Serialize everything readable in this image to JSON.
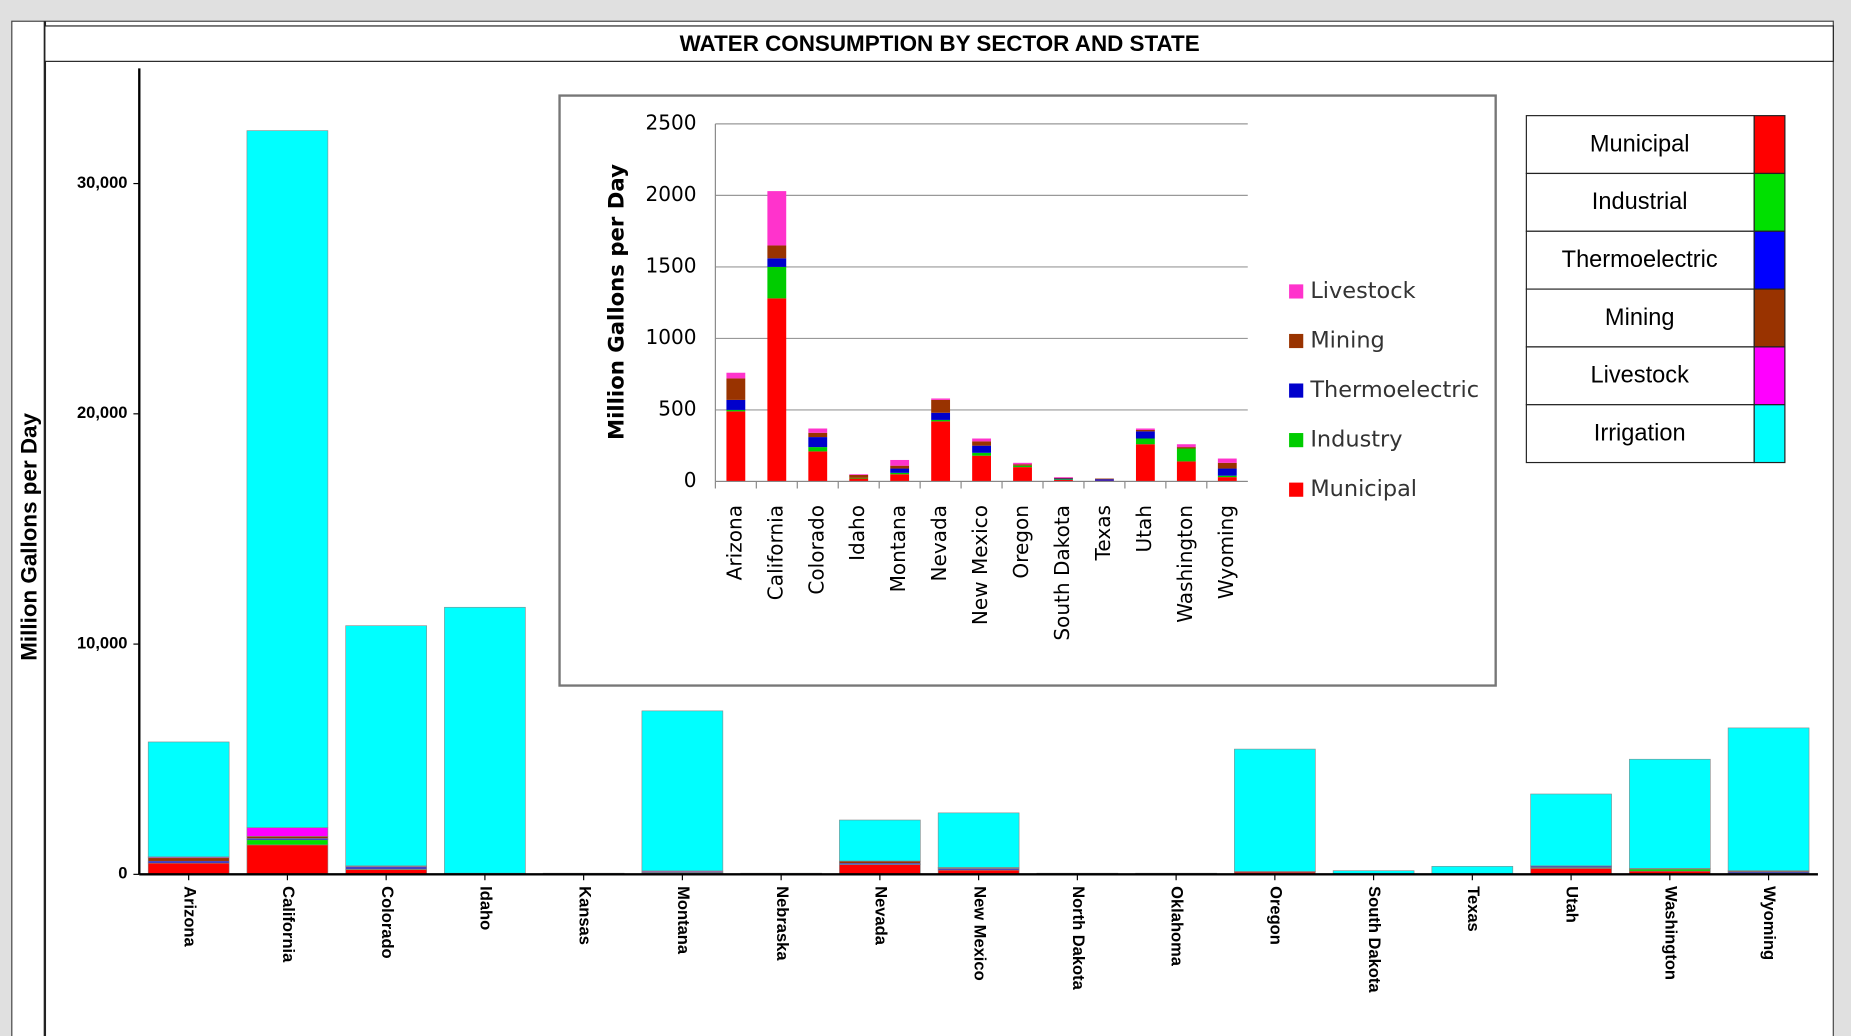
{
  "chart_data": [
    {
      "type": "bar",
      "stacked": true,
      "title": "WATER CONSUMPTION BY SECTOR AND STATE",
      "y_label": "Million Gallons per Day",
      "categories": [
        "Arizona",
        "California",
        "Colorado",
        "Idaho",
        "Kansas",
        "Montana",
        "Nebraska",
        "Nevada",
        "New Mexico",
        "North Dakota",
        "Oklahoma",
        "Oregon",
        "South Dakota",
        "Texas",
        "Utah",
        "Washington",
        "Wyoming"
      ],
      "series": [
        {
          "name": "Municipal",
          "color": "#ff0000",
          "values": [
            490,
            1280,
            210,
            20,
            20,
            50,
            20,
            420,
            180,
            20,
            20,
            100,
            10,
            5,
            260,
            140,
            30
          ]
        },
        {
          "name": "Industrial",
          "color": "#00e000",
          "values": [
            10,
            220,
            30,
            5,
            0,
            10,
            0,
            10,
            20,
            0,
            0,
            10,
            5,
            0,
            40,
            90,
            10
          ]
        },
        {
          "name": "Thermoelectric",
          "color": "#0000ff",
          "values": [
            70,
            60,
            70,
            0,
            0,
            30,
            0,
            50,
            50,
            0,
            0,
            0,
            5,
            10,
            50,
            0,
            50
          ]
        },
        {
          "name": "Mining",
          "color": "#993300",
          "values": [
            150,
            90,
            30,
            20,
            0,
            20,
            0,
            90,
            30,
            0,
            0,
            10,
            5,
            5,
            10,
            10,
            40
          ]
        },
        {
          "name": "Livestock",
          "color": "#ff00ff",
          "values": [
            40,
            380,
            30,
            5,
            0,
            40,
            0,
            10,
            20,
            0,
            0,
            10,
            5,
            0,
            10,
            20,
            30
          ]
        },
        {
          "name": "Irrigation",
          "color": "#00ffff",
          "values": [
            4990,
            30270,
            10430,
            11550,
            30,
            6950,
            30,
            1780,
            2370,
            30,
            30,
            5310,
            130,
            330,
            3120,
            4740,
            6200
          ]
        }
      ],
      "ylim": [
        0,
        35000
      ],
      "yticks": [
        0,
        {
          "value": 10000,
          "label": "10,000"
        },
        {
          "value": 20000,
          "label": "20,000"
        },
        {
          "value": 30000,
          "label": "30,000"
        }
      ],
      "grid": false,
      "legend": "upper right"
    },
    {
      "type": "bar",
      "stacked": true,
      "y_label": "Million Gallons per Day",
      "categories": [
        "Arizona",
        "California",
        "Colorado",
        "Idaho",
        "Montana",
        "Nevada",
        "New Mexico",
        "Oregon",
        "South Dakota",
        "Texas",
        "Utah",
        "Washington",
        "Wyoming"
      ],
      "series": [
        {
          "name": "Municipal",
          "color": "#ff0000",
          "values": [
            490,
            1280,
            210,
            20,
            50,
            420,
            180,
            100,
            10,
            5,
            260,
            140,
            30
          ]
        },
        {
          "name": "Industry",
          "color": "#00cc00",
          "values": [
            10,
            220,
            30,
            5,
            10,
            10,
            20,
            10,
            5,
            0,
            40,
            90,
            10
          ]
        },
        {
          "name": "Thermoelectric",
          "color": "#0000cc",
          "values": [
            70,
            60,
            70,
            0,
            30,
            50,
            50,
            0,
            5,
            10,
            50,
            0,
            50
          ]
        },
        {
          "name": "Mining",
          "color": "#993300",
          "values": [
            150,
            90,
            30,
            20,
            20,
            90,
            30,
            10,
            5,
            5,
            10,
            10,
            40
          ]
        },
        {
          "name": "Livestock",
          "color": "#ff33cc",
          "values": [
            40,
            380,
            30,
            5,
            40,
            10,
            20,
            10,
            5,
            0,
            10,
            20,
            30
          ]
        }
      ],
      "ylim": [
        0,
        2500
      ],
      "yticks": [
        0,
        500,
        1000,
        1500,
        2000,
        2500
      ],
      "grid": true,
      "legend": "right"
    }
  ]
}
